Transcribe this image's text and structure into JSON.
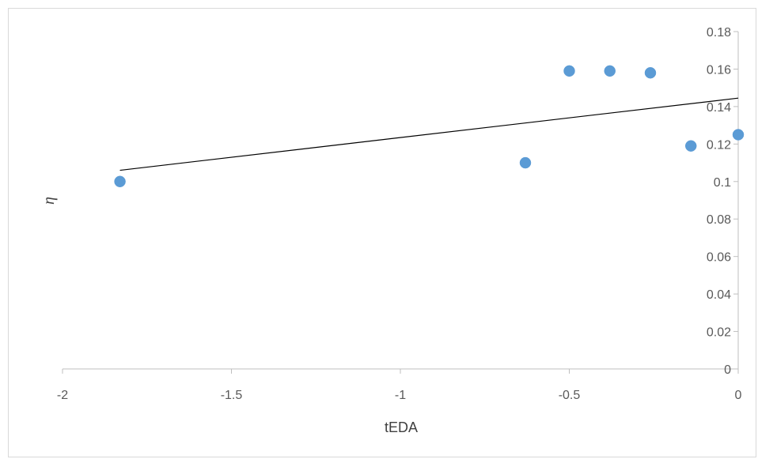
{
  "chart_data": {
    "type": "scatter",
    "title": "",
    "xlabel": "tEDA",
    "ylabel": "η",
    "xlim": [
      -2,
      0
    ],
    "ylim": [
      0,
      0.18
    ],
    "x_ticks": [
      "-2",
      "-1.5",
      "-1",
      "-0.5",
      "0"
    ],
    "y_ticks": [
      "0",
      "0.02",
      "0.04",
      "0.06",
      "0.08",
      "0.1",
      "0.12",
      "0.14",
      "0.16",
      "0.18"
    ],
    "grid": false,
    "legend": "none",
    "series": [
      {
        "points": [
          {
            "x": -1.83,
            "y": 0.1
          },
          {
            "x": -0.63,
            "y": 0.11
          },
          {
            "x": -0.5,
            "y": 0.159
          },
          {
            "x": -0.38,
            "y": 0.159
          },
          {
            "x": -0.26,
            "y": 0.158
          },
          {
            "x": -0.14,
            "y": 0.119
          },
          {
            "x": 0.0,
            "y": 0.125
          }
        ],
        "color": "#5b9bd5"
      }
    ],
    "trendline": {
      "type": "linear",
      "from": {
        "x": -1.83,
        "y": 0.106
      },
      "to": {
        "x": 0.0,
        "y": 0.1445
      },
      "color": "#000000"
    }
  }
}
